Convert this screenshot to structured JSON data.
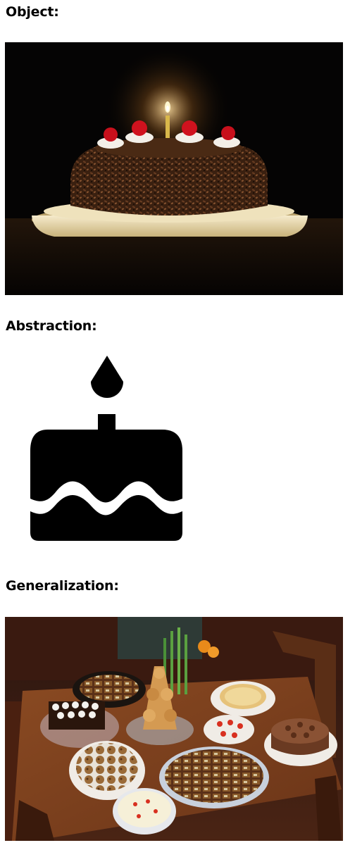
{
  "sections": {
    "object": {
      "heading": "Object:",
      "image": "chocolate-cake-with-candle-photo"
    },
    "abstraction": {
      "heading": "Abstraction:",
      "image": "cake-icon"
    },
    "generalization": {
      "heading": "Generalization:",
      "image": "dessert-table-photo"
    }
  },
  "colors": {
    "text": "#000000",
    "background": "#ffffff"
  }
}
